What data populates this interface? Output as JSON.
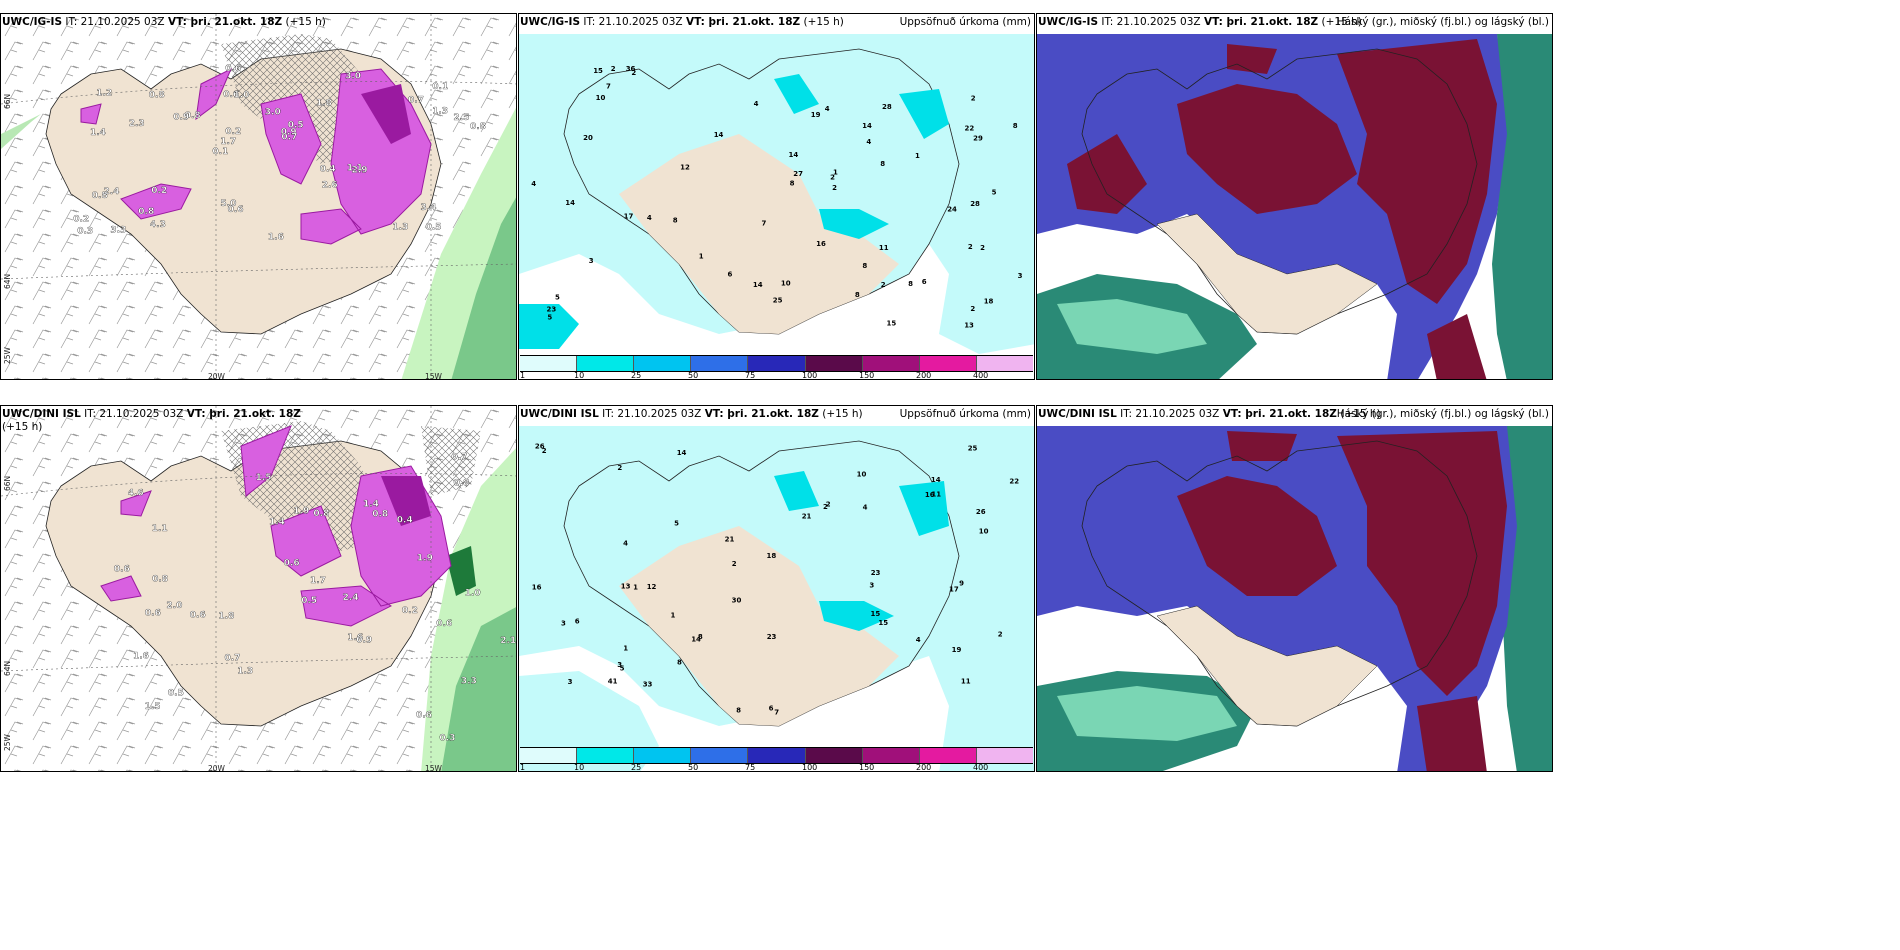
{
  "rows": [
    {
      "model": "UWC/IG-IS",
      "it_text": "IT: 21.10.2025 03Z",
      "vt_text": "VT: þri. 21.okt. 18Z",
      "lead": "(+15 h)",
      "left_values": [
        "0.5",
        "1.4",
        "0.1",
        "0.1",
        "1.8",
        "3.3",
        "0.6",
        "3.0",
        "2.4",
        "0.8",
        "0.2",
        "0.8",
        "1.0",
        "0.5",
        "2.9",
        "1.2",
        "0.6",
        "0.8",
        "0.4",
        "1.3",
        "1.7",
        "5.0",
        "0.2",
        "0.8",
        "3.0",
        "0.2",
        "1.3",
        "3.4",
        "1.1",
        "1.6",
        "0.9",
        "2.3",
        "2.6",
        "4.3",
        "2.5",
        "0.9",
        "0.3",
        "0.6",
        "0.7",
        "0.8",
        "0.7"
      ],
      "precip_values": [
        "3",
        "1",
        "2",
        "3",
        "4",
        "6",
        "14",
        "4",
        "2",
        "5",
        "2",
        "16",
        "28",
        "25",
        "15",
        "6",
        "13",
        "22",
        "2",
        "11",
        "17",
        "28",
        "12",
        "14",
        "36",
        "4",
        "8",
        "8",
        "10",
        "8",
        "14",
        "23",
        "27",
        "29",
        "5",
        "19",
        "1",
        "7",
        "7",
        "20",
        "14",
        "2",
        "8",
        "8",
        "8",
        "5",
        "15",
        "10",
        "8",
        "4",
        "2",
        "14",
        "24",
        "18",
        "4",
        "2",
        "1",
        "2",
        "2"
      ]
    },
    {
      "model": "UWC/DINI ISL",
      "it_text": "IT: 21.10.2025 03Z",
      "vt_text": "VT: þri. 21.okt. 18Z",
      "lead": "(+15 h)",
      "left_values": [
        "0.3",
        "2.0",
        "1.6",
        "4.6",
        "3.3",
        "1.1",
        "0.5",
        "1.8",
        "0.4",
        "1.9",
        "0.8",
        "0.6",
        "1.3",
        "1.5",
        "2.4",
        "1.6",
        "0.2",
        "1.7",
        "0.6",
        "1.5",
        "0.7",
        "0.8",
        "1.9",
        "2.1",
        "1.0",
        "0.8",
        "0.6",
        "0.5",
        "0.6",
        "0.8",
        "0.9",
        "0.6",
        "0.7",
        "1.4",
        "1.4",
        "0.6"
      ],
      "precip_values": [
        "3",
        "15",
        "2",
        "3",
        "11",
        "16",
        "14",
        "23",
        "21",
        "33",
        "17",
        "5",
        "14",
        "14",
        "2",
        "21",
        "12",
        "2",
        "8",
        "10",
        "4",
        "19",
        "23",
        "41",
        "30",
        "26",
        "13",
        "1",
        "25",
        "6",
        "11",
        "22",
        "1",
        "8",
        "7",
        "9",
        "4",
        "4",
        "8",
        "15",
        "3",
        "2",
        "1",
        "16",
        "18",
        "26",
        "2",
        "10",
        "6",
        "5",
        "3",
        "2"
      ]
    }
  ],
  "precip_label": "Uppsöfnuð úrkoma (mm)",
  "cloud_label": "Háský (gr.), miðský (fj.bl.) og lágský (bl.)",
  "colorbar": {
    "ticks": [
      "1",
      "10",
      "25",
      "50",
      "75",
      "100",
      "150",
      "200",
      "400"
    ],
    "colors": [
      "#dffcfc",
      "#00e8e8",
      "#00c4f0",
      "#2e6fe8",
      "#2828b8",
      "#5a0a4a",
      "#a0107a",
      "#e41aa0",
      "#f0b4f0"
    ]
  },
  "axis_labels": {
    "lon1": "20W",
    "lon2": "15W",
    "lat1": "66N",
    "lat2": "64N",
    "lat3": "25W"
  },
  "colors": {
    "land": "#f0e3d2",
    "water": "#ffffff",
    "precip_light": "#c4fafa",
    "precip_mid": "#00e0e8",
    "snow": "#d860e0",
    "snow_dark": "#9a1aa0",
    "green_light": "#c8f4c0",
    "green_mid": "#7ac88a",
    "green_dark": "#1e7a3a",
    "cloud_high": "#7a1234",
    "cloud_mid": "#4a4cc4",
    "cloud_low": "#2a8a76",
    "cloud_low_light": "#7ad6b4"
  }
}
